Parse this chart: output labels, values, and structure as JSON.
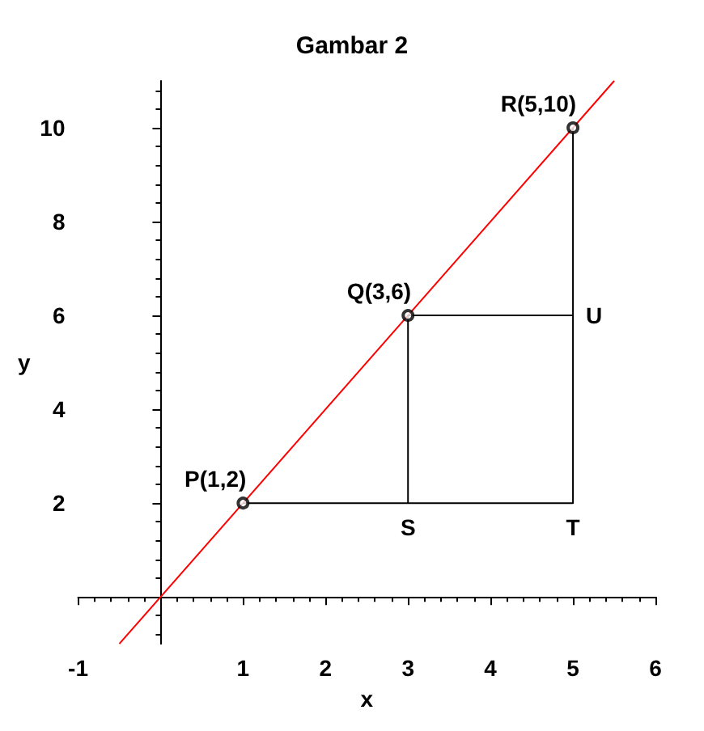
{
  "chart_data": {
    "type": "line",
    "title": "Gambar 2",
    "xlabel": "x",
    "ylabel": "y",
    "xlim": [
      -1,
      6
    ],
    "ylim": [
      -1,
      11
    ],
    "xticks": [
      -1,
      1,
      2,
      3,
      4,
      5,
      6
    ],
    "yticks": [
      2,
      4,
      6,
      8,
      10
    ],
    "grid": false,
    "series": [
      {
        "color": "#ff0000",
        "x": [
          -0.5,
          5.5
        ],
        "values": [
          -1,
          11
        ],
        "marker": "none"
      },
      {
        "type": "line",
        "color": "#000000",
        "x": [
          1,
          5,
          5
        ],
        "values": [
          2,
          2,
          10
        ],
        "marker": "none"
      },
      {
        "type": "line",
        "color": "#000000",
        "x": [
          3,
          3,
          5
        ],
        "values": [
          2,
          6,
          6
        ],
        "marker": "none"
      },
      {
        "type": "scatter",
        "color": "#000000",
        "x": [
          1,
          3,
          5
        ],
        "values": [
          2,
          6,
          10
        ],
        "marker": "circle"
      }
    ],
    "annotations": [
      {
        "text": "P(1,2)",
        "x": 1,
        "y": 2
      },
      {
        "text": "Q(3,6)",
        "x": 3,
        "y": 6
      },
      {
        "text": "R(5,10)",
        "x": 5,
        "y": 10
      },
      {
        "text": "S",
        "x": 3,
        "y": 2
      },
      {
        "text": "T",
        "x": 5,
        "y": 2
      },
      {
        "text": "U",
        "x": 5,
        "y": 6
      }
    ]
  }
}
